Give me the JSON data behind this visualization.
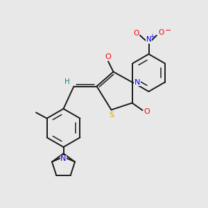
{
  "bg_color": "#e8e8e8",
  "bond_color": "#1a1a1a",
  "atom_colors": {
    "O": "#ff0000",
    "N": "#0000ff",
    "S": "#ccaa00",
    "H": "#008888",
    "C": "#1a1a1a"
  },
  "lw": 1.4,
  "lw_inner": 1.1
}
